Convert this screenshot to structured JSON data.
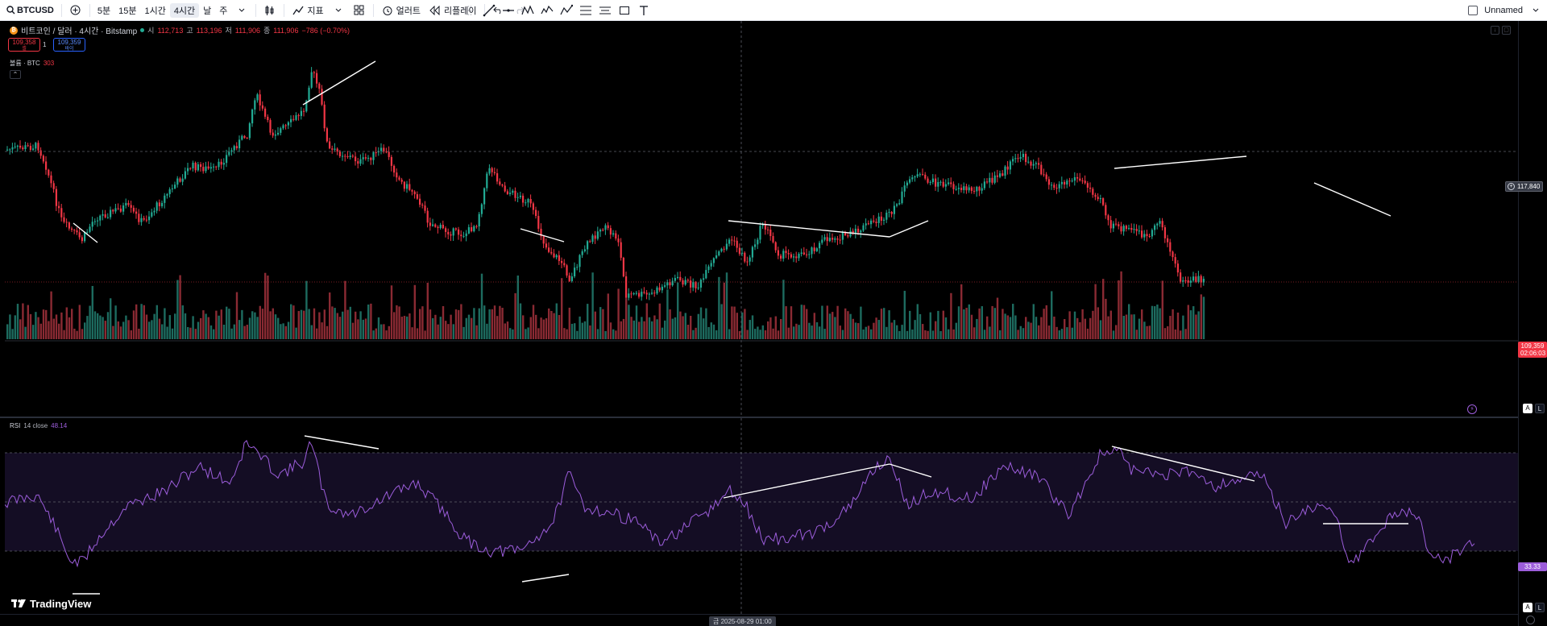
{
  "toolbar": {
    "symbol": "BTCUSD",
    "intervals": [
      "5분",
      "15분",
      "1시간",
      "4시간",
      "날",
      "주"
    ],
    "active_interval": "4시간",
    "indicators_label": "지표",
    "alert_label": "얼러트",
    "replay_label": "리플레이",
    "layout_name": "Unnamed"
  },
  "legend": {
    "title": "비트코인 / 달러 · 4시간 · Bitstamp",
    "open_label": "시",
    "open": "112,713",
    "high_label": "고",
    "high": "113,196",
    "low_label": "저",
    "low": "111,906",
    "close_label": "종",
    "close": "111,906",
    "change": "−786 (−0.70%)",
    "sell_price": "109,358",
    "sell_label": "셀",
    "spread": "1",
    "buy_price": "109,359",
    "buy_label": "바이",
    "volume_label": "볼륨 · BTC",
    "volume_value": "303",
    "rsi_label": "RSI",
    "rsi_params": "14 close",
    "rsi_value": "48.14"
  },
  "price_scale": {
    "crosshair_price": "117,840",
    "last_price": "109,359",
    "countdown": "02:06:03",
    "rsi_last": "33.33"
  },
  "time_axis": {
    "crosshair_time": "금 2025-08-29   01:00"
  },
  "branding": {
    "logo_text": "TradingView"
  },
  "colors": {
    "up": "#22ab94",
    "down": "#f23645",
    "rsi_line": "#9c5ddb",
    "divergence": "#ffffff"
  }
}
